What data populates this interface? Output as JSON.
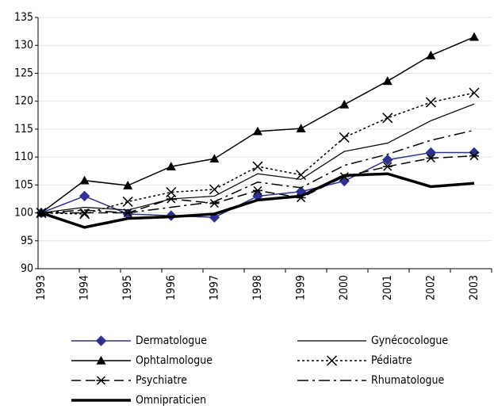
{
  "chart_data": {
    "type": "line",
    "categories": [
      "1993",
      "1994",
      "1995",
      "1996",
      "1997",
      "1998",
      "1999",
      "2000",
      "2001",
      "2002",
      "2003"
    ],
    "ylim": [
      90,
      135
    ],
    "yticks": [
      90,
      95,
      100,
      105,
      110,
      115,
      120,
      125,
      130,
      135
    ],
    "grid": true,
    "series": [
      {
        "name": "Dermatologue",
        "color": "#2e3192",
        "marker": "diamond",
        "dash": "solid",
        "width": 1.5,
        "values": [
          100,
          103,
          99.8,
          99.5,
          99.2,
          103,
          103.8,
          105.7,
          109.5,
          110.8,
          110.8
        ]
      },
      {
        "name": "Gynécocologue",
        "color": "#000000",
        "marker": "none",
        "dash": "solid",
        "width": 1.2,
        "values": [
          100,
          101,
          100.5,
          102.5,
          103,
          107,
          106,
          111,
          112.5,
          116.5,
          119.5
        ]
      },
      {
        "name": "Ophtalmologue",
        "color": "#000000",
        "marker": "triangle",
        "dash": "solid",
        "width": 1.5,
        "values": [
          100,
          105.8,
          104.9,
          108.3,
          109.7,
          114.6,
          115.1,
          119.4,
          123.6,
          128.2,
          131.5
        ]
      },
      {
        "name": "Pédiatre",
        "color": "#000000",
        "marker": "x",
        "dash": "dotted",
        "width": 1.5,
        "values": [
          100,
          99.8,
          102,
          103.7,
          104.2,
          108.3,
          106.8,
          113.5,
          117,
          119.8,
          121.5
        ]
      },
      {
        "name": "Psychiatre",
        "color": "#000000",
        "marker": "star",
        "dash": "dashed",
        "width": 1.5,
        "values": [
          100,
          100,
          100,
          102.5,
          101.7,
          104,
          102.7,
          106.5,
          108.3,
          109.8,
          110.2
        ]
      },
      {
        "name": "Rhumatologue",
        "color": "#000000",
        "marker": "none",
        "dash": "dashdot",
        "width": 1.5,
        "values": [
          100,
          100.5,
          100,
          101,
          102,
          105.5,
          104.5,
          108.5,
          110.5,
          113,
          114.8
        ]
      },
      {
        "name": "Omnipraticien",
        "color": "#000000",
        "marker": "none",
        "dash": "solid",
        "width": 3.5,
        "values": [
          100,
          97.4,
          99,
          99.3,
          99.8,
          102.3,
          103,
          106.7,
          107,
          104.7,
          105.3
        ]
      }
    ]
  }
}
